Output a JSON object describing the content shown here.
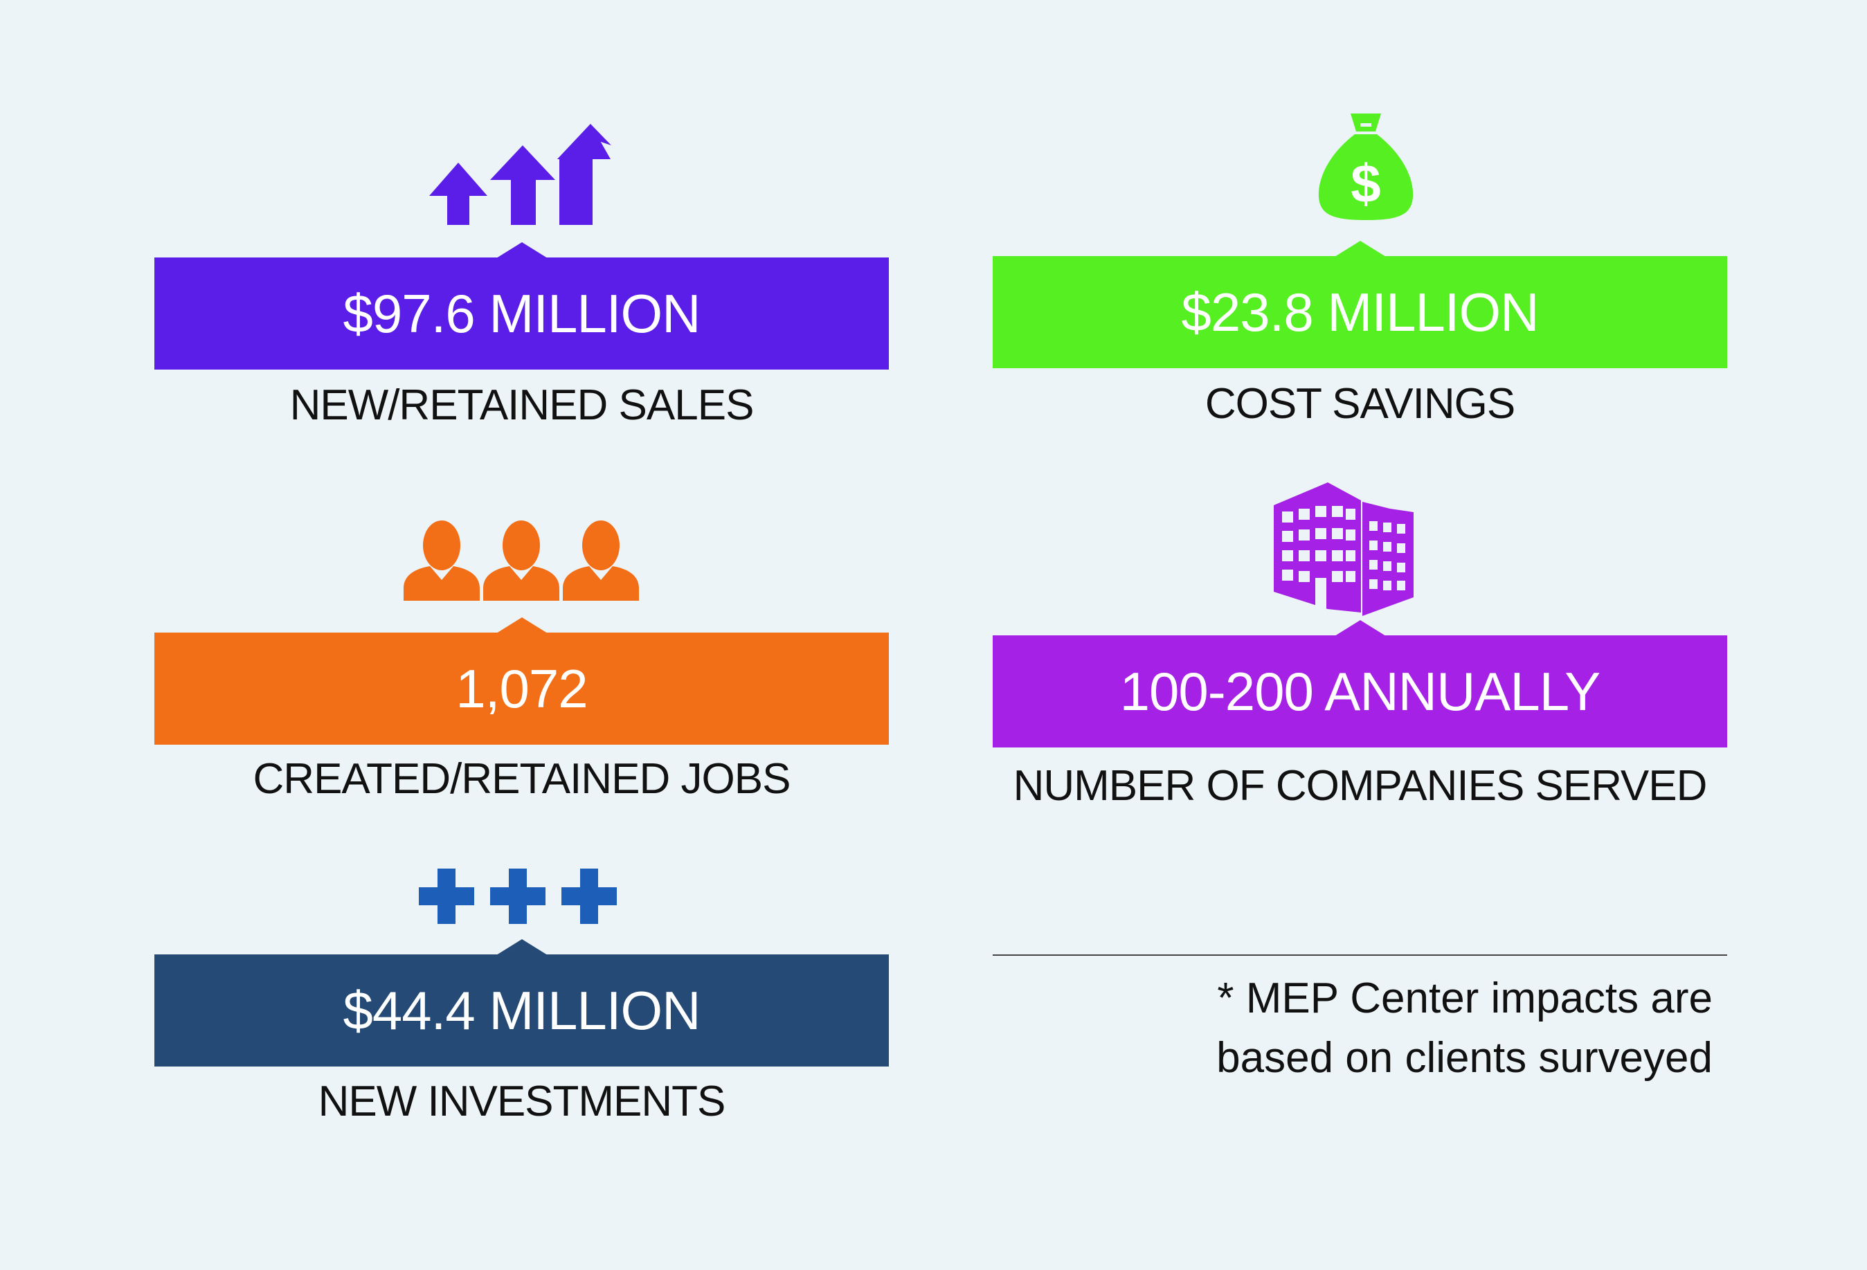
{
  "stats": {
    "sales": {
      "value": "$97.6 MILLION",
      "label": "NEW/RETAINED SALES",
      "color": "#5a1ee8",
      "icon": "arrows-up-icon"
    },
    "savings": {
      "value": "$23.8 MILLION",
      "label": "COST SAVINGS",
      "color": "#55ef22",
      "icon": "money-bag-icon"
    },
    "jobs": {
      "value": "1,072",
      "label": "CREATED/RETAINED JOBS",
      "color": "#f26f17",
      "icon": "people-icon"
    },
    "companies": {
      "value": "100-200 ANNUALLY",
      "label": "NUMBER OF COMPANIES SERVED",
      "color": "#a521e6",
      "icon": "building-icon"
    },
    "investments": {
      "value": "$44.4 MILLION",
      "label": "NEW INVESTMENTS",
      "color": "#244a75",
      "icon": "plus-signs-icon"
    }
  },
  "footnote": {
    "line1": "* MEP Center impacts are",
    "line2": "based on clients surveyed"
  },
  "icon_colors": {
    "arrows": "#5a1ee8",
    "money_bag": "#55ef22",
    "people": "#f26f17",
    "building": "#a521e6",
    "plus": "#1d5eb8"
  }
}
